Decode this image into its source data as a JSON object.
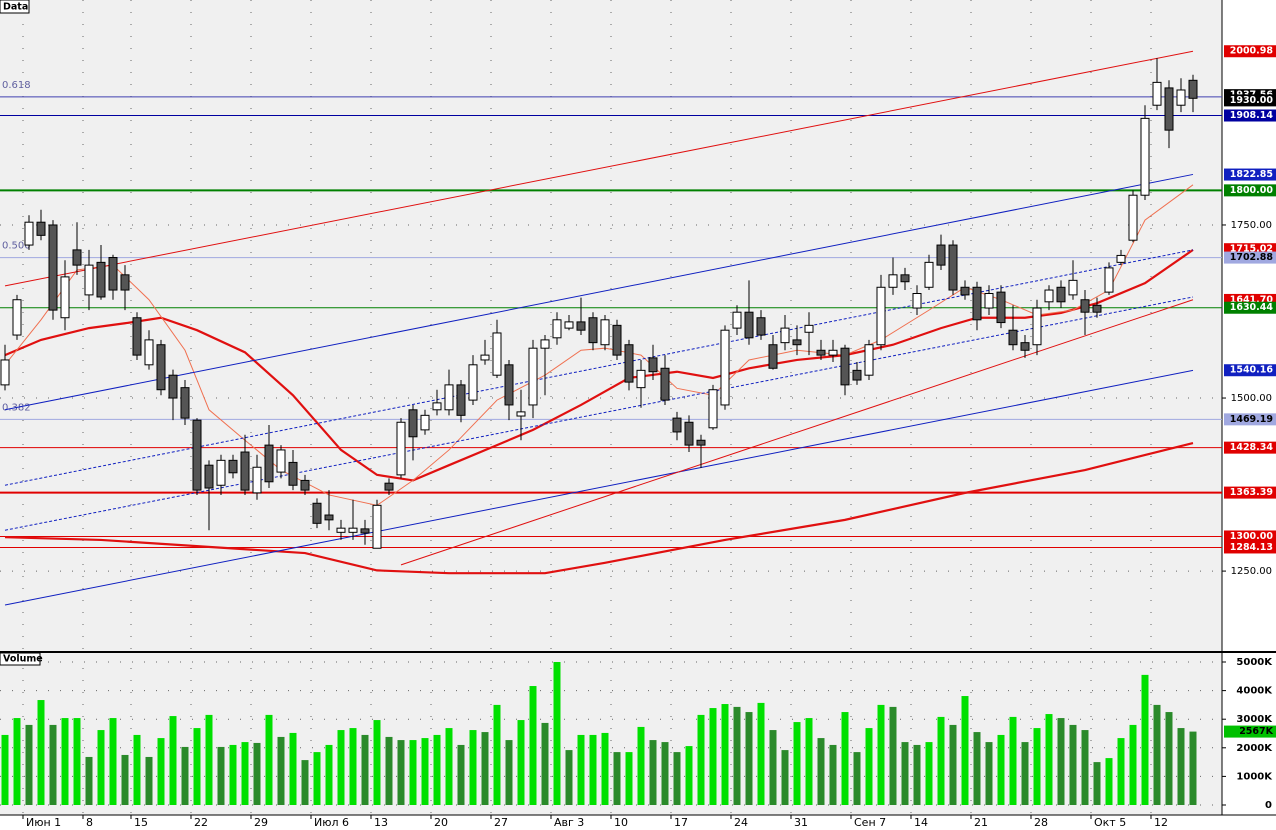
{
  "chart_data": [
    {
      "type": "candlestick",
      "title": "Data",
      "categories": [
        null,
        null,
        "Июн 1",
        null,
        null,
        null,
        null,
        "8",
        null,
        null,
        null,
        "15",
        null,
        null,
        null,
        null,
        "22",
        null,
        null,
        null,
        null,
        "29",
        null,
        null,
        null,
        null,
        "Июл 6",
        null,
        null,
        null,
        null,
        "13",
        null,
        null,
        null,
        null,
        "20",
        null,
        null,
        null,
        null,
        "27",
        null,
        null,
        null,
        null,
        "Авг 3",
        null,
        null,
        null,
        null,
        "10",
        null,
        null,
        null,
        null,
        "17",
        null,
        null,
        null,
        null,
        "24",
        null,
        null,
        null,
        null,
        "31",
        null,
        null,
        null,
        null,
        "Сен 7",
        null,
        null,
        null,
        null,
        "14",
        null,
        null,
        null,
        null,
        "21",
        null,
        null,
        null,
        null,
        "28",
        null,
        null,
        null,
        null,
        "Окт 5",
        null,
        null,
        null,
        null,
        "12",
        null,
        null,
        null
      ],
      "open": [
        1519,
        1591,
        1721,
        1754,
        1750,
        1616,
        1714,
        1649,
        1696,
        1703,
        1678,
        1616,
        1548,
        1577,
        1533,
        1515,
        1468,
        1403,
        1374,
        1410,
        1422,
        1363,
        1432,
        1393,
        1407,
        1381,
        1348,
        1331,
        1306,
        1306,
        1311,
        1283,
        1377,
        1389,
        1483,
        1454,
        1483,
        1483,
        1519,
        1497,
        1555,
        1533,
        1548,
        1474,
        1490,
        1572,
        1587,
        1601,
        1610,
        1616,
        1577,
        1605,
        1577,
        1515,
        1558,
        1543,
        1471,
        1465,
        1439,
        1457,
        1490,
        1601,
        1624,
        1616,
        1577,
        1580,
        1584,
        1595,
        1569,
        1562,
        1572,
        1540,
        1533,
        1577,
        1660,
        1678,
        1630,
        1660,
        1721,
        1721,
        1660,
        1660,
        1630,
        1653,
        1598,
        1580,
        1577,
        1639,
        1660,
        1649,
        1642,
        1634,
        1653,
        1696,
        1728,
        1793,
        1923,
        1948,
        1923,
        1959
      ],
      "high": [
        1577,
        1649,
        1764,
        1772,
        1757,
        1699,
        1754,
        1714,
        1721,
        1707,
        1692,
        1624,
        1598,
        1584,
        1541,
        1526,
        1471,
        1410,
        1418,
        1418,
        1447,
        1418,
        1461,
        1432,
        1425,
        1389,
        1355,
        1367,
        1324,
        1353,
        1324,
        1353,
        1384,
        1471,
        1490,
        1483,
        1512,
        1541,
        1526,
        1562,
        1584,
        1613,
        1555,
        1512,
        1584,
        1591,
        1624,
        1620,
        1645,
        1624,
        1620,
        1613,
        1584,
        1555,
        1577,
        1562,
        1480,
        1475,
        1447,
        1519,
        1605,
        1634,
        1670,
        1627,
        1591,
        1620,
        1605,
        1624,
        1584,
        1584,
        1577,
        1552,
        1584,
        1678,
        1703,
        1688,
        1663,
        1707,
        1736,
        1728,
        1670,
        1668,
        1663,
        1663,
        1634,
        1591,
        1642,
        1663,
        1670,
        1699,
        1656,
        1645,
        1696,
        1714,
        1800,
        1923,
        1991,
        1959,
        1962,
        1967
      ],
      "low": [
        1511,
        1584,
        1714,
        1728,
        1613,
        1598,
        1678,
        1627,
        1642,
        1642,
        1627,
        1555,
        1541,
        1504,
        1468,
        1461,
        1360,
        1309,
        1360,
        1384,
        1360,
        1353,
        1370,
        1384,
        1367,
        1360,
        1312,
        1309,
        1295,
        1295,
        1288,
        1283,
        1360,
        1384,
        1410,
        1447,
        1475,
        1475,
        1465,
        1490,
        1548,
        1529,
        1468,
        1439,
        1471,
        1504,
        1577,
        1598,
        1591,
        1569,
        1569,
        1555,
        1511,
        1486,
        1526,
        1490,
        1439,
        1422,
        1399,
        1454,
        1483,
        1591,
        1577,
        1584,
        1541,
        1569,
        1562,
        1562,
        1555,
        1552,
        1504,
        1519,
        1526,
        1569,
        1649,
        1656,
        1620,
        1656,
        1685,
        1649,
        1642,
        1598,
        1620,
        1601,
        1569,
        1558,
        1562,
        1627,
        1630,
        1642,
        1591,
        1616,
        1649,
        1692,
        1725,
        1786,
        1916,
        1861,
        1913,
        1913
      ],
      "close": [
        1555,
        1642,
        1754,
        1735,
        1627,
        1675,
        1692,
        1692,
        1646,
        1656,
        1656,
        1562,
        1584,
        1512,
        1500,
        1471,
        1367,
        1370,
        1410,
        1392,
        1367,
        1400,
        1379,
        1425,
        1374,
        1367,
        1319,
        1324,
        1312,
        1312,
        1305,
        1345,
        1367,
        1465,
        1444,
        1475,
        1493,
        1519,
        1475,
        1548,
        1562,
        1594,
        1490,
        1480,
        1572,
        1584,
        1613,
        1610,
        1598,
        1580,
        1613,
        1562,
        1523,
        1540,
        1538,
        1497,
        1451,
        1432,
        1432,
        1512,
        1598,
        1624,
        1587,
        1591,
        1543,
        1601,
        1577,
        1605,
        1562,
        1569,
        1519,
        1526,
        1577,
        1660,
        1678,
        1668,
        1651,
        1696,
        1692,
        1656,
        1649,
        1613,
        1651,
        1609,
        1577,
        1569,
        1630,
        1656,
        1639,
        1670,
        1624,
        1624,
        1688,
        1706,
        1793,
        1904,
        1956,
        1887,
        1945,
        1933
      ],
      "up_color": "#ffffff",
      "down_color": "#555555",
      "ylim": [
        1136,
        2075
      ],
      "yticks": [
        {
          "value": 1250,
          "label": "1250.00"
        },
        {
          "value": 1500,
          "label": "1500.00"
        },
        {
          "value": 1750,
          "label": "1750.00"
        }
      ],
      "grid": true,
      "lines": [
        {
          "color": "#e01010",
          "bold": true,
          "dashed": false,
          "x": [
            0,
            8,
            25,
            31,
            37,
            45,
            50,
            60,
            70,
            80,
            90,
            99
          ],
          "values": [
            1299,
            1295,
            1276,
            1251,
            1247,
            1247,
            1262,
            1295,
            1324,
            1363,
            1396,
            1435
          ]
        },
        {
          "color": "#e01010",
          "bold": true,
          "dashed": false,
          "x": [
            0,
            3,
            7,
            10,
            13,
            16,
            20,
            24,
            28,
            31,
            34,
            37,
            41,
            44,
            48,
            52,
            56,
            59,
            62,
            66,
            70,
            74,
            78,
            81,
            85,
            88,
            91,
            95,
            99
          ],
          "values": [
            1562,
            1584,
            1601,
            1608,
            1616,
            1598,
            1566,
            1504,
            1425,
            1389,
            1381,
            1403,
            1432,
            1454,
            1490,
            1529,
            1538,
            1529,
            1543,
            1555,
            1562,
            1577,
            1601,
            1616,
            1616,
            1623,
            1637,
            1666,
            1714
          ]
        },
        {
          "color": "#f07050",
          "bold": false,
          "dashed": false,
          "x": [
            0,
            3,
            6,
            9,
            12,
            15,
            17,
            20,
            23,
            27,
            31,
            34,
            37,
            41,
            45,
            48,
            50,
            53,
            56,
            59,
            62,
            66,
            70,
            73,
            77,
            80,
            83,
            86,
            89,
            92,
            95,
            99
          ],
          "values": [
            1548,
            1613,
            1685,
            1692,
            1642,
            1569,
            1483,
            1439,
            1396,
            1360,
            1345,
            1381,
            1425,
            1497,
            1533,
            1569,
            1572,
            1562,
            1514,
            1504,
            1555,
            1569,
            1562,
            1584,
            1627,
            1660,
            1642,
            1620,
            1627,
            1656,
            1757,
            1808
          ]
        },
        {
          "color": "#e01010",
          "bold": false,
          "dashed": false,
          "x": [
            0,
            99
          ],
          "values": [
            1662,
            2001
          ]
        },
        {
          "color": "#1020c0",
          "bold": false,
          "dashed": false,
          "x": [
            0,
            99
          ],
          "values": [
            1483,
            1823
          ]
        },
        {
          "color": "#1020c0",
          "bold": false,
          "dashed": false,
          "x": [
            0,
            99
          ],
          "values": [
            1201,
            1540
          ]
        },
        {
          "color": "#1020c0",
          "bold": false,
          "dashed": true,
          "x": [
            0,
            99
          ],
          "values": [
            1374,
            1714
          ]
        },
        {
          "color": "#1020c0",
          "bold": false,
          "dashed": true,
          "x": [
            0,
            99
          ],
          "values": [
            1309,
            1646
          ]
        },
        {
          "color": "#e01010",
          "bold": false,
          "dashed": false,
          "x": [
            33,
            99
          ],
          "values": [
            1259,
            1642
          ]
        }
      ],
      "levels": [
        {
          "value": 2000.98,
          "color": "#e00000",
          "line": false,
          "bold": false
        },
        {
          "value": 1937.56,
          "color": "#000000",
          "line": false,
          "bold": false
        },
        {
          "value": 1935,
          "color": "#4040b0",
          "line": true,
          "bold": false,
          "fib": "0.618",
          "nolabel": true
        },
        {
          "value": 1930,
          "label": "1930.00",
          "color": "#000000",
          "line": false,
          "bold": false
        },
        {
          "value": 1908.14,
          "color": "#0000a0",
          "line": true,
          "bold": false
        },
        {
          "value": 1822.85,
          "color": "#1020c0",
          "line": false,
          "bold": false
        },
        {
          "value": 1800,
          "label": "1800.00",
          "color": "#008000",
          "line": true,
          "bold": true
        },
        {
          "value": 1715.02,
          "color": "#e00000",
          "line": false,
          "bold": false
        },
        {
          "value": 1702.88,
          "color": "#a0a8e0",
          "text_color": "#000000",
          "line": true,
          "bold": false,
          "fib": "0.500"
        },
        {
          "value": 1641.7,
          "label": "1641.70",
          "color": "#e00000",
          "line": false,
          "bold": false
        },
        {
          "value": 1630.44,
          "color": "#008000",
          "line": true,
          "bold": false
        },
        {
          "value": 1540.16,
          "color": "#1020c0",
          "line": false,
          "bold": false
        },
        {
          "value": 1469.19,
          "color": "#a0a8e0",
          "text_color": "#000000",
          "line": true,
          "bold": false,
          "fib": "0.382"
        },
        {
          "value": 1428.34,
          "color": "#e00000",
          "line": true,
          "bold": false
        },
        {
          "value": 1363.39,
          "color": "#e00000",
          "line": true,
          "bold": true
        },
        {
          "value": 1300,
          "label": "1300.00",
          "color": "#e00000",
          "line": true,
          "bold": false
        },
        {
          "value": 1284.13,
          "color": "#e00000",
          "line": true,
          "bold": false
        }
      ]
    },
    {
      "type": "bar",
      "title": "Volume",
      "values": [
        2450,
        3040,
        2800,
        3670,
        2800,
        3040,
        3040,
        1680,
        2620,
        3040,
        1750,
        2450,
        1680,
        2340,
        3110,
        2030,
        2690,
        3150,
        2030,
        2100,
        2200,
        2170,
        3150,
        2380,
        2520,
        1570,
        1850,
        2100,
        2620,
        2690,
        2450,
        2970,
        2380,
        2270,
        2270,
        2340,
        2450,
        2690,
        2100,
        2620,
        2550,
        3500,
        2270,
        2970,
        4160,
        2870,
        5000,
        1920,
        2450,
        2450,
        2520,
        1850,
        1850,
        2730,
        2270,
        2200,
        1850,
        2060,
        3150,
        3390,
        3530,
        3430,
        3250,
        3570,
        2620,
        1920,
        2900,
        3040,
        2340,
        2100,
        3250,
        1850,
        2690,
        3500,
        3430,
        2200,
        2100,
        2200,
        3080,
        2800,
        3810,
        2550,
        2200,
        2450,
        3080,
        2200,
        2690,
        3180,
        3040,
        2800,
        2620,
        1500,
        1640,
        2340,
        2800,
        4550,
        3500,
        3250,
        2690,
        2567
      ],
      "color_up": "#00e000",
      "color_down": "#2a8a2a",
      "ylim": [
        -175,
        5245
      ],
      "yticks": [
        {
          "value": 5000,
          "label": "5000K"
        },
        {
          "value": 4000,
          "label": "4000K"
        },
        {
          "value": 3000,
          "label": "3000K"
        },
        {
          "value": 2000,
          "label": "2000K"
        },
        {
          "value": 1000,
          "label": "1000K"
        },
        0
      ],
      "last_label": {
        "value": 2567,
        "label": "2567K"
      },
      "last_color": "#00c000"
    }
  ]
}
